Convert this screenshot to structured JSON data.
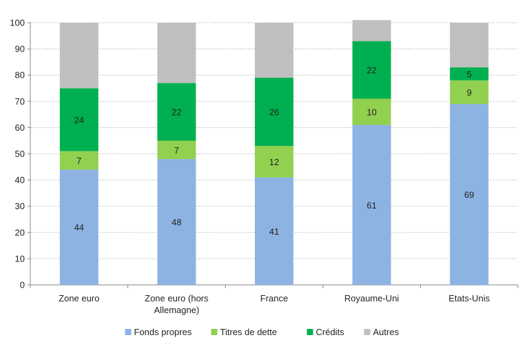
{
  "chart_data": {
    "type": "bar",
    "stacked": true,
    "categories": [
      [
        "Zone euro"
      ],
      [
        "Zone euro (hors",
        "Allemagne)"
      ],
      [
        "France"
      ],
      [
        "Royaume-Uni"
      ],
      [
        "Etats-Unis"
      ]
    ],
    "series": [
      {
        "name": "Fonds propres",
        "color": "#8DB3E2",
        "values": [
          44,
          48,
          41,
          61,
          69
        ]
      },
      {
        "name": "Titres de dette",
        "color": "#92D050",
        "values": [
          7,
          7,
          12,
          10,
          9
        ]
      },
      {
        "name": "Crédits",
        "color": "#00B050",
        "values": [
          24,
          22,
          26,
          22,
          5
        ]
      },
      {
        "name": "Autres",
        "color": "#BFBFBF",
        "values": [
          25,
          23,
          21,
          8,
          17
        ]
      }
    ],
    "labeled_series": [
      "Fonds propres",
      "Titres de dette",
      "Crédits"
    ],
    "ylim": [
      0,
      100
    ],
    "yticks": [
      0,
      10,
      20,
      30,
      40,
      50,
      60,
      70,
      80,
      90,
      100
    ],
    "grid": true,
    "legend_position": "bottom"
  }
}
